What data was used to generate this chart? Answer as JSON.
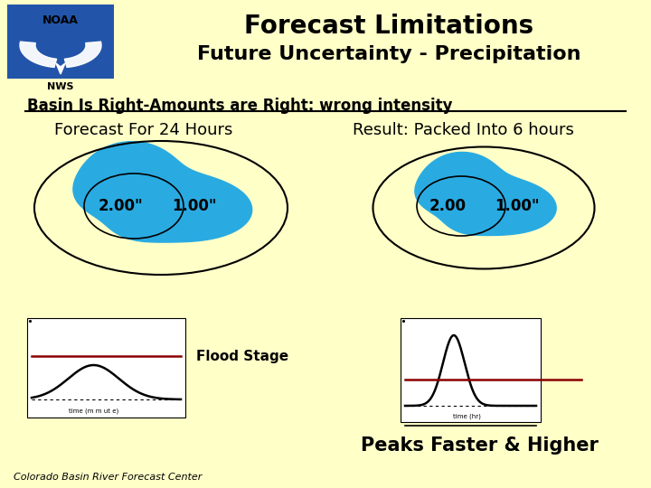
{
  "bg_color": "#FFFFC8",
  "title1": "Forecast Limitations",
  "title2": "Future Uncertainty - Precipitation",
  "subtitle": "Basin Is Right-Amounts are Right: wrong intensity",
  "label_left": "Forecast For 24 Hours",
  "label_right": "Result: Packed Into 6 hours",
  "label_2_00_left": "2.00\"",
  "label_1_00_left": "1.00\"",
  "label_2_00_right": "2.00",
  "label_1_00_right": "1.00\"",
  "flood_stage_label": "Flood Stage",
  "peaks_label": "Peaks Faster & Higher",
  "footer": "Colorado Basin River Forecast Center",
  "noaa_text": "NOAA",
  "nws_text": "NWS",
  "blue_fill": "#29ABE2",
  "noaa_bg": "#2255AA"
}
